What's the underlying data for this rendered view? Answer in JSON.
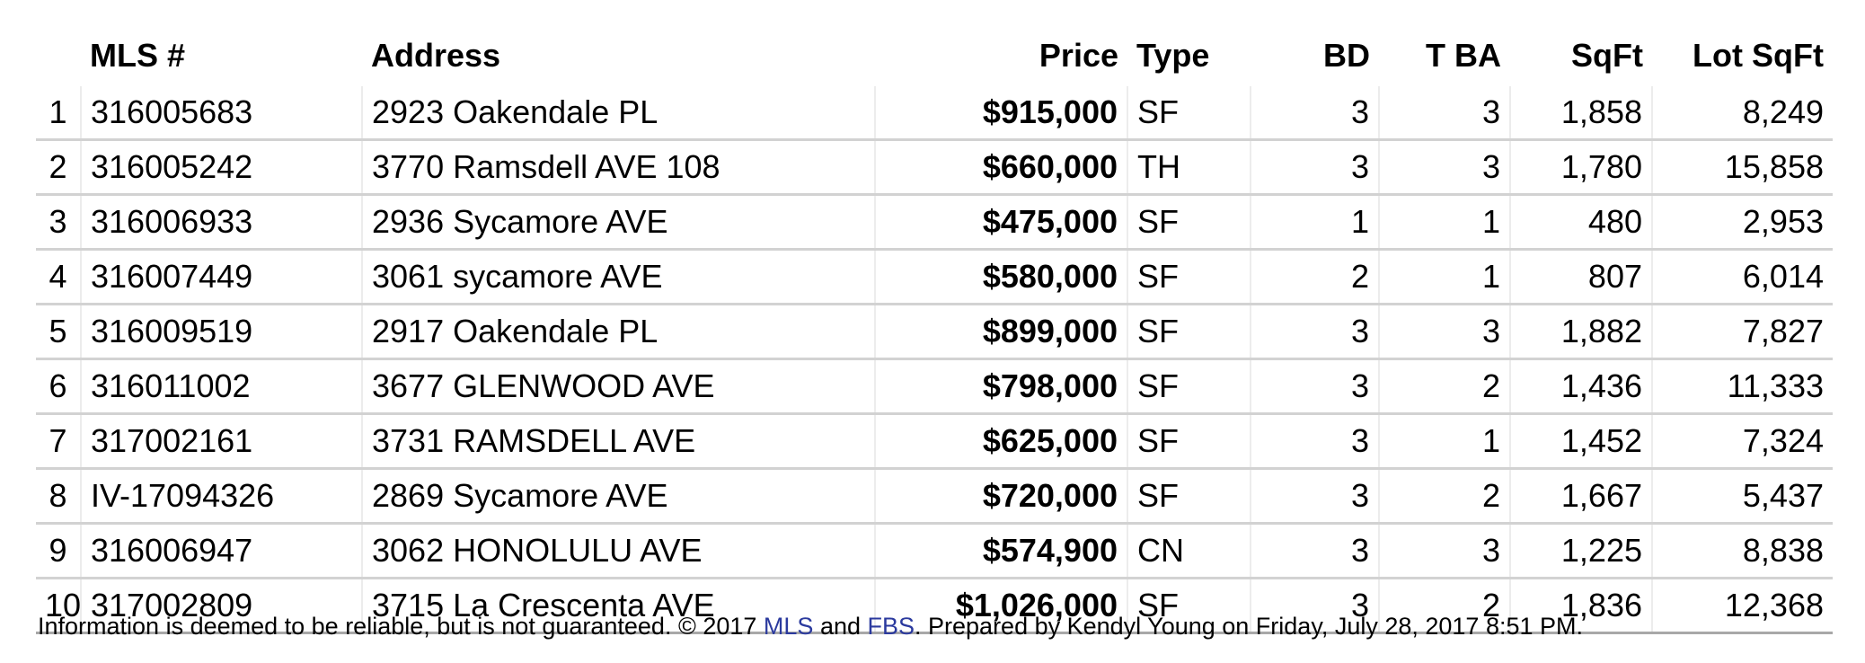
{
  "table": {
    "headers": {
      "num": "",
      "mls": "MLS #",
      "address": "Address",
      "price": "Price",
      "type": "Type",
      "bd": "BD",
      "tba": "T BA",
      "sqft": "SqFt",
      "lot": "Lot SqFt"
    },
    "rows": [
      {
        "num": "1",
        "mls": "316005683",
        "address": "2923 Oakendale PL",
        "price": "$915,000",
        "type": "SF",
        "bd": "3",
        "tba": "3",
        "sqft": "1,858",
        "lot": "8,249"
      },
      {
        "num": "2",
        "mls": "316005242",
        "address": "3770 Ramsdell AVE 108",
        "price": "$660,000",
        "type": "TH",
        "bd": "3",
        "tba": "3",
        "sqft": "1,780",
        "lot": "15,858"
      },
      {
        "num": "3",
        "mls": "316006933",
        "address": "2936 Sycamore AVE",
        "price": "$475,000",
        "type": "SF",
        "bd": "1",
        "tba": "1",
        "sqft": "480",
        "lot": "2,953"
      },
      {
        "num": "4",
        "mls": "316007449",
        "address": "3061 sycamore AVE",
        "price": "$580,000",
        "type": "SF",
        "bd": "2",
        "tba": "1",
        "sqft": "807",
        "lot": "6,014"
      },
      {
        "num": "5",
        "mls": "316009519",
        "address": "2917 Oakendale PL",
        "price": "$899,000",
        "type": "SF",
        "bd": "3",
        "tba": "3",
        "sqft": "1,882",
        "lot": "7,827"
      },
      {
        "num": "6",
        "mls": "316011002",
        "address": "3677 GLENWOOD AVE",
        "price": "$798,000",
        "type": "SF",
        "bd": "3",
        "tba": "2",
        "sqft": "1,436",
        "lot": "11,333"
      },
      {
        "num": "7",
        "mls": "317002161",
        "address": "3731 RAMSDELL AVE",
        "price": "$625,000",
        "type": "SF",
        "bd": "3",
        "tba": "1",
        "sqft": "1,452",
        "lot": "7,324"
      },
      {
        "num": "8",
        "mls": "IV-17094326",
        "address": "2869 Sycamore AVE",
        "price": "$720,000",
        "type": "SF",
        "bd": "3",
        "tba": "2",
        "sqft": "1,667",
        "lot": "5,437"
      },
      {
        "num": "9",
        "mls": "316006947",
        "address": "3062 HONOLULU AVE",
        "price": "$574,900",
        "type": "CN",
        "bd": "3",
        "tba": "3",
        "sqft": "1,225",
        "lot": "8,838"
      },
      {
        "num": "10",
        "mls": "317002809",
        "address": "3715 La Crescenta AVE",
        "price": "$1,026,000",
        "type": "SF",
        "bd": "3",
        "tba": "2",
        "sqft": "1,836",
        "lot": "12,368"
      }
    ]
  },
  "footer": {
    "text_before": "Information is deemed to be reliable, but is not guaranteed. © 2017 ",
    "mls_link": "MLS",
    "and": " and ",
    "fbs_link": "FBS",
    "text_after": ". Prepared by Kendyl Young on Friday, July 28, 2017 8:51 PM."
  },
  "colors": {
    "link": "#2b3a9e",
    "row_divider": "#d2d2d2"
  }
}
